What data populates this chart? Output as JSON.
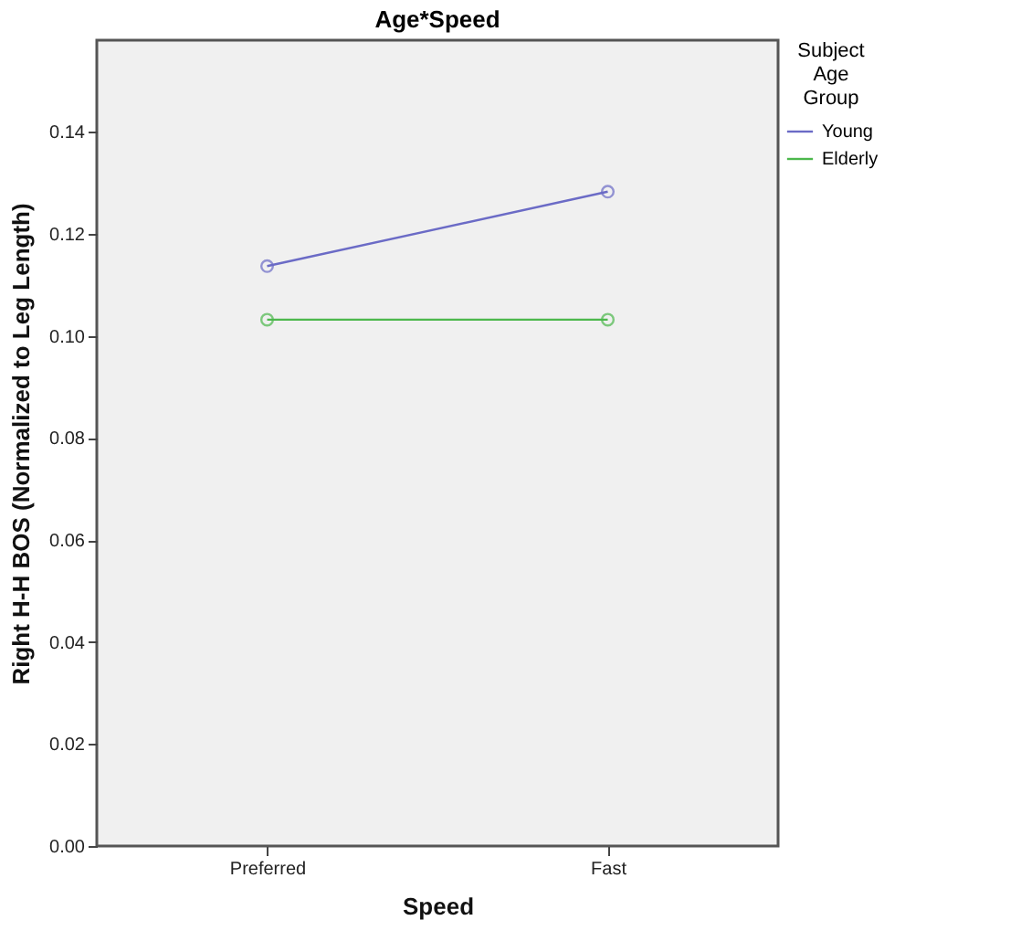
{
  "chart_data": {
    "type": "line",
    "title": "Age*Speed",
    "xlabel": "Speed",
    "ylabel": "Right H-H BOS (Normalized to Leg Length)",
    "legend_title": "Subject Age Group",
    "categories": [
      "Preferred",
      "Fast"
    ],
    "series": [
      {
        "name": "Young",
        "color": "#6b6bc6",
        "values": [
          0.1137,
          0.1283
        ]
      },
      {
        "name": "Elderly",
        "color": "#4cb84c",
        "values": [
          0.1032,
          0.1032
        ]
      }
    ],
    "ylim": [
      0,
      0.158
    ],
    "yticks": [
      {
        "value": 0,
        "label": "0.00"
      },
      {
        "value": 0.02,
        "label": "0.02"
      },
      {
        "value": 0.04,
        "label": "0.04"
      },
      {
        "value": 0.06,
        "label": "0.06"
      },
      {
        "value": 0.08,
        "label": "0.08"
      },
      {
        "value": 0.1,
        "label": "0.10"
      },
      {
        "value": 0.12,
        "label": "0.12"
      },
      {
        "value": 0.14,
        "label": "0.14"
      }
    ],
    "marker": "circle",
    "line_style": "solid",
    "grid": false,
    "legend": "top right"
  }
}
